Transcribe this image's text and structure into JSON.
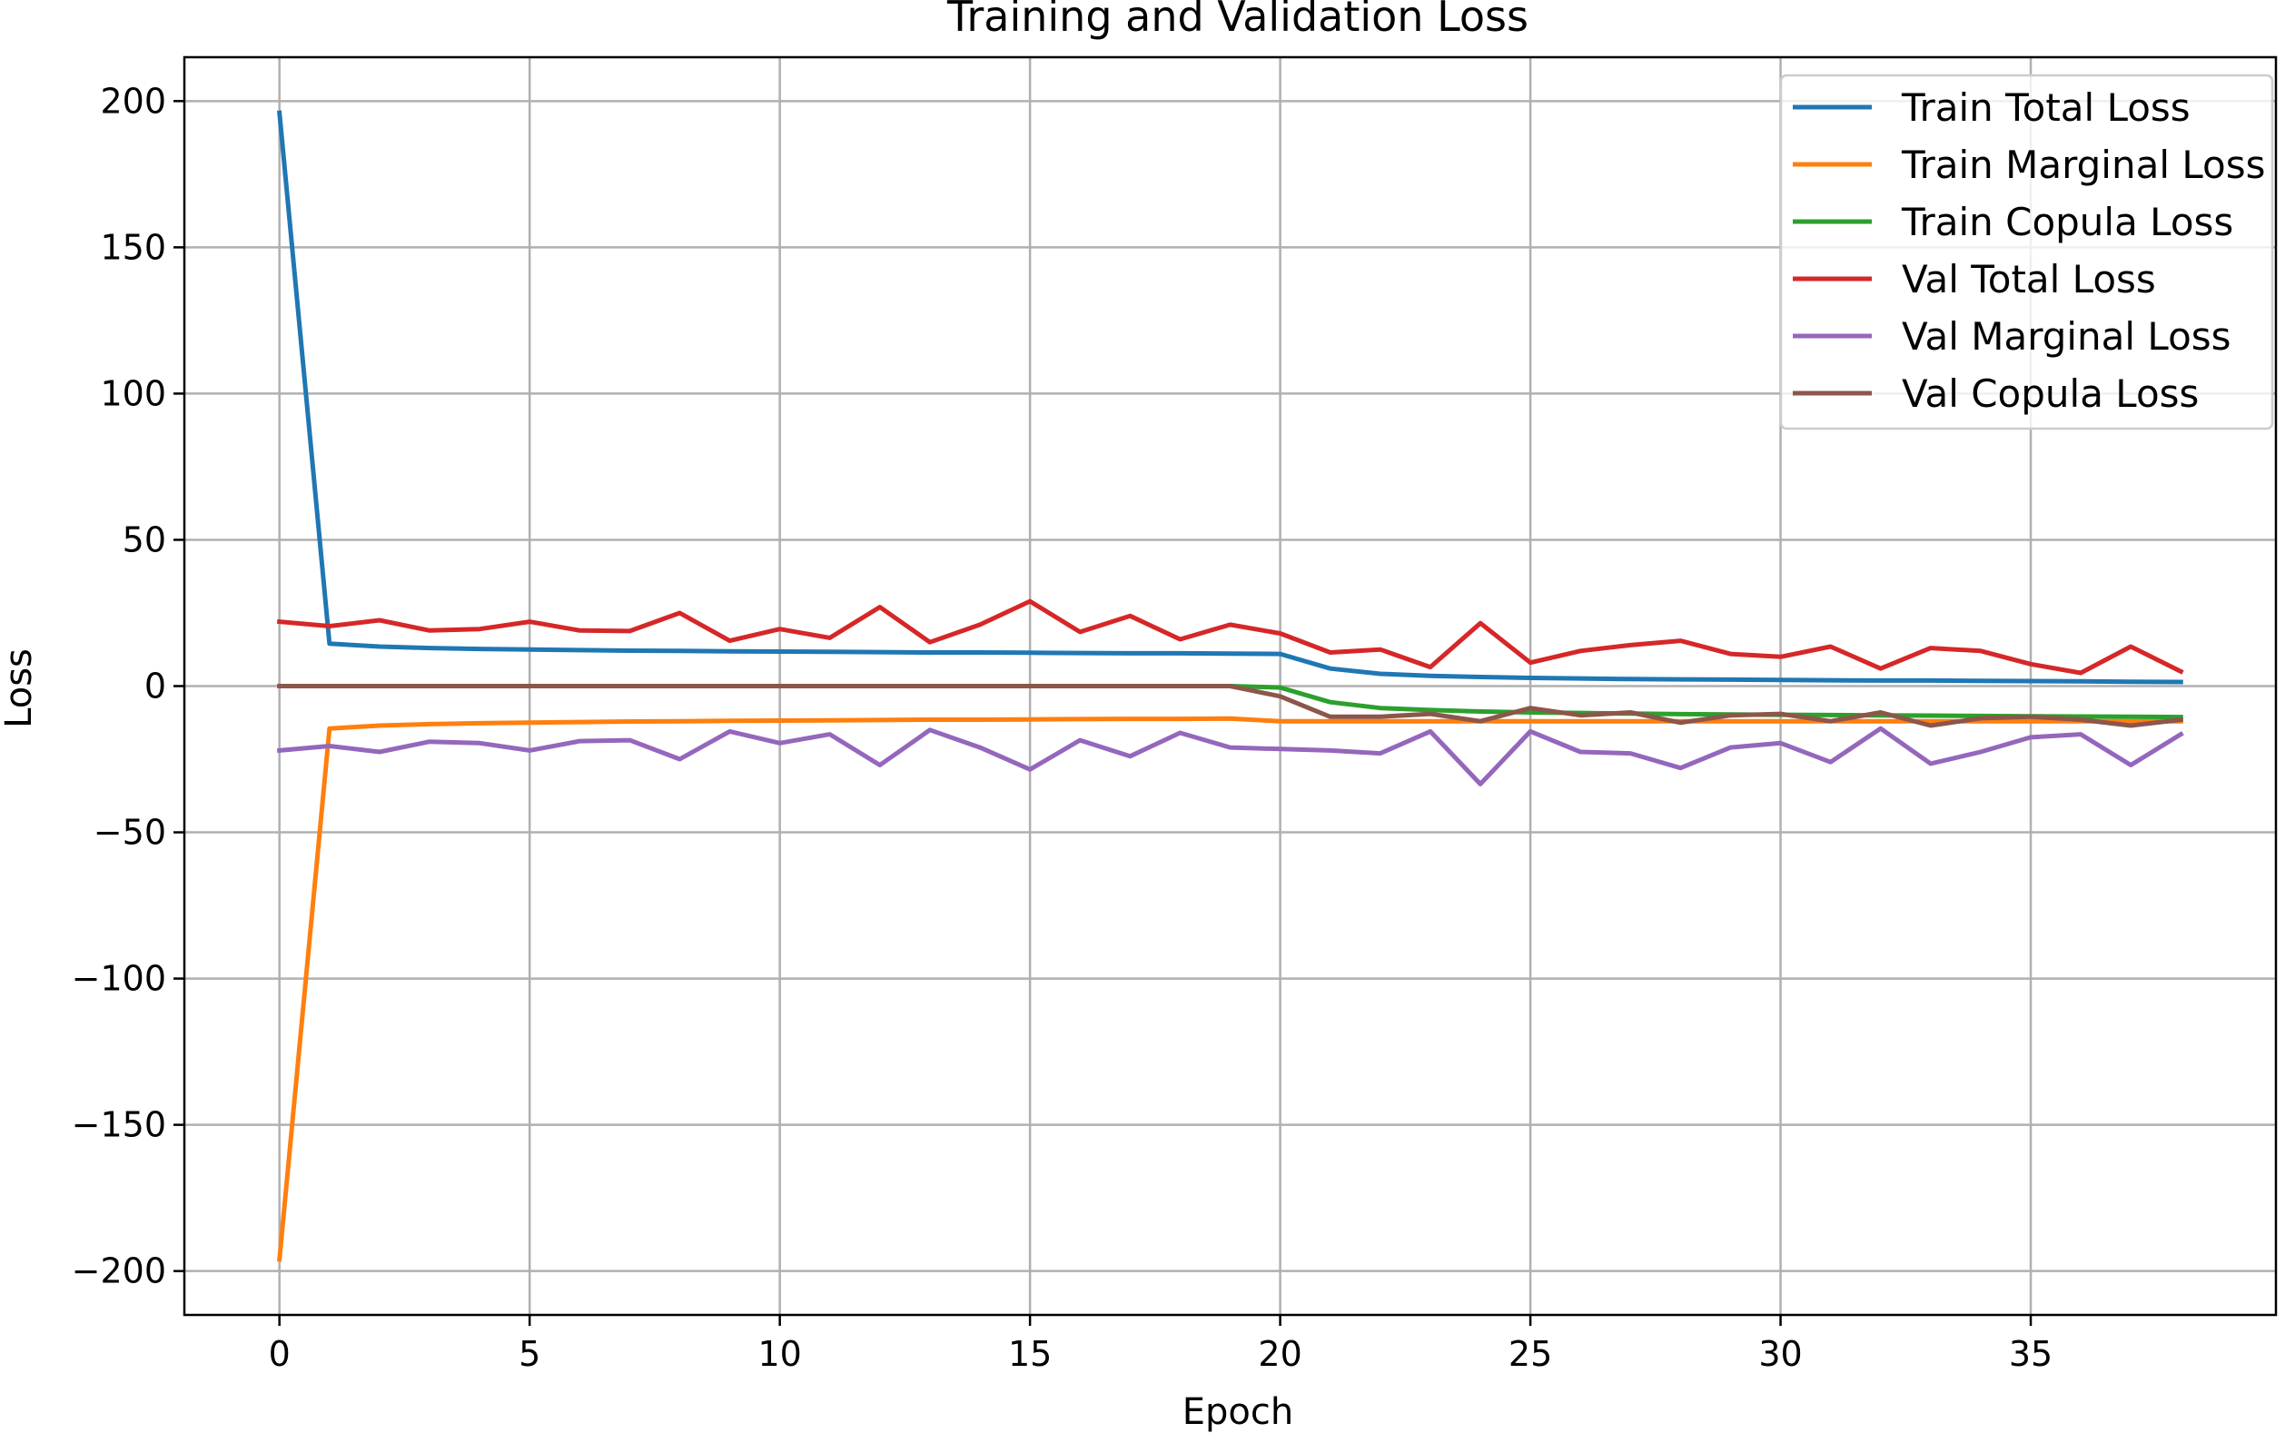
{
  "chart_data": {
    "type": "line",
    "title": "Training and Validation Loss",
    "xlabel": "Epoch",
    "ylabel": "Loss",
    "xlim": [
      -1.9,
      39.9
    ],
    "ylim": [
      -215,
      215
    ],
    "xticks": [
      0,
      5,
      10,
      15,
      20,
      25,
      30,
      35
    ],
    "yticks": [
      -200,
      -150,
      -100,
      -50,
      0,
      50,
      100,
      150,
      200
    ],
    "ytick_labels": [
      "−200",
      "−150",
      "−100",
      "−50",
      "0",
      "50",
      "100",
      "150",
      "200"
    ],
    "grid": true,
    "legend_position": "top-right",
    "x": [
      0,
      1,
      2,
      3,
      4,
      5,
      6,
      7,
      8,
      9,
      10,
      11,
      12,
      13,
      14,
      15,
      16,
      17,
      18,
      19,
      20,
      21,
      22,
      23,
      24,
      25,
      26,
      27,
      28,
      29,
      30,
      31,
      32,
      33,
      34,
      35,
      36,
      37,
      38
    ],
    "series": [
      {
        "name": "Train Total Loss",
        "color": "#1f77b4",
        "values": [
          196,
          14.5,
          13.5,
          13.0,
          12.7,
          12.5,
          12.3,
          12.1,
          12.0,
          11.9,
          11.8,
          11.7,
          11.6,
          11.5,
          11.5,
          11.4,
          11.3,
          11.2,
          11.2,
          11.1,
          11.0,
          6.0,
          4.2,
          3.5,
          3.1,
          2.8,
          2.6,
          2.4,
          2.3,
          2.2,
          2.1,
          2.0,
          1.9,
          1.9,
          1.8,
          1.7,
          1.6,
          1.5,
          1.4
        ]
      },
      {
        "name": "Train Marginal Loss",
        "color": "#ff7f0e",
        "values": [
          -196,
          -14.5,
          -13.5,
          -13.0,
          -12.7,
          -12.5,
          -12.3,
          -12.1,
          -12.0,
          -11.9,
          -11.8,
          -11.7,
          -11.6,
          -11.5,
          -11.5,
          -11.4,
          -11.3,
          -11.2,
          -11.2,
          -11.1,
          -12.0,
          -12.0,
          -12.0,
          -12.0,
          -12.0,
          -12.0,
          -12.0,
          -12.0,
          -12.0,
          -12.0,
          -12.0,
          -12.0,
          -12.0,
          -12.0,
          -12.0,
          -12.0,
          -12.0,
          -12.0,
          -12.0
        ]
      },
      {
        "name": "Train Copula Loss",
        "color": "#2ca02c",
        "values": [
          0,
          0,
          0,
          0,
          0,
          0,
          0,
          0,
          0,
          0,
          0,
          0,
          0,
          0,
          0,
          0,
          0,
          0,
          0,
          0,
          -0.5,
          -5.5,
          -7.5,
          -8.2,
          -8.7,
          -9.0,
          -9.2,
          -9.4,
          -9.6,
          -9.7,
          -9.8,
          -9.9,
          -10.0,
          -10.1,
          -10.2,
          -10.3,
          -10.4,
          -10.5,
          -10.6
        ]
      },
      {
        "name": "Val Total Loss",
        "color": "#d62728",
        "values": [
          22.0,
          20.5,
          22.5,
          19.0,
          19.5,
          22.0,
          19.0,
          18.8,
          25.0,
          15.5,
          19.5,
          16.5,
          27.0,
          15.0,
          21.0,
          29.0,
          18.5,
          24.0,
          16.0,
          21.0,
          18.0,
          11.5,
          12.5,
          6.5,
          21.5,
          8.0,
          12.0,
          14.0,
          15.5,
          11.0,
          10.0,
          13.5,
          6.0,
          13.0,
          12.0,
          7.5,
          4.5,
          13.5,
          5.0
        ]
      },
      {
        "name": "Val Marginal Loss",
        "color": "#9467bd",
        "values": [
          -22.0,
          -20.5,
          -22.5,
          -19.0,
          -19.5,
          -22.0,
          -18.8,
          -18.5,
          -25.0,
          -15.5,
          -19.5,
          -16.5,
          -27.0,
          -15.0,
          -21.0,
          -28.5,
          -18.5,
          -24.0,
          -16.0,
          -21.0,
          -21.5,
          -22.0,
          -23.0,
          -15.5,
          -33.5,
          -15.5,
          -22.5,
          -23.0,
          -28.0,
          -21.0,
          -19.5,
          -26.0,
          -14.5,
          -26.5,
          -22.5,
          -17.5,
          -16.5,
          -27.0,
          -16.5
        ]
      },
      {
        "name": "Val Copula Loss",
        "color": "#8c564b",
        "values": [
          0,
          0,
          0,
          0,
          0,
          0,
          0,
          0,
          0,
          0,
          0,
          0,
          0,
          0,
          0,
          0,
          0,
          0,
          0,
          0,
          -3.5,
          -10.5,
          -10.5,
          -9.5,
          -12.0,
          -7.5,
          -10.0,
          -9.0,
          -12.5,
          -10.0,
          -9.5,
          -12.0,
          -9.0,
          -13.5,
          -11.0,
          -10.5,
          -11.5,
          -13.5,
          -11.5
        ]
      }
    ]
  }
}
